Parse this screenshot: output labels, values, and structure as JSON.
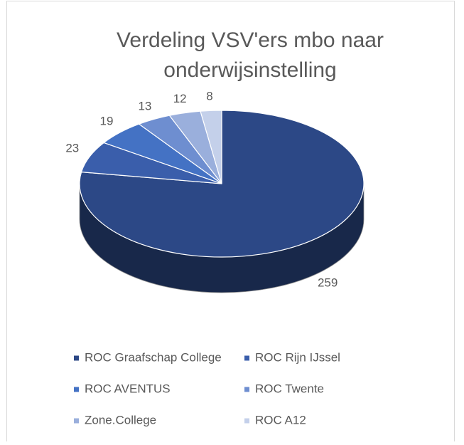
{
  "chart_data": {
    "type": "pie3d",
    "title": [
      "Verdeling VSV'ers mbo naar",
      "onderwijsinstelling"
    ],
    "categories": [
      "ROC Graafschap College",
      "ROC Rijn IJssel",
      "ROC AVENTUS",
      "ROC Twente",
      "Zone.College",
      "ROC A12"
    ],
    "values": [
      259,
      23,
      19,
      13,
      12,
      8
    ],
    "colors": [
      "#2c4886",
      "#3a5eab",
      "#4472c4",
      "#6e8ed0",
      "#9aafdc",
      "#c4d0ea"
    ],
    "legend": "bottom"
  }
}
